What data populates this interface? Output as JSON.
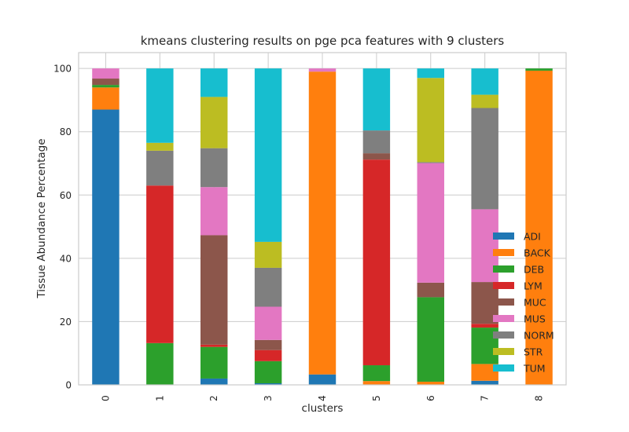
{
  "chart_data": {
    "type": "bar",
    "stacked": true,
    "title": "kmeans clustering results on pge pca features with 9 clusters",
    "xlabel": "clusters",
    "ylabel": "Tissue Abundance Percentage",
    "ylim": [
      0,
      105
    ],
    "yticks": [
      0,
      20,
      40,
      60,
      80,
      100
    ],
    "grid": true,
    "legend_position": "lower-right",
    "categories": [
      "0",
      "1",
      "2",
      "3",
      "4",
      "5",
      "6",
      "7",
      "8"
    ],
    "series": [
      {
        "name": "ADI",
        "color": "#1f77b4",
        "values": [
          87.0,
          0.0,
          2.0,
          0.5,
          3.3,
          0.0,
          0.0,
          1.3,
          0.0
        ]
      },
      {
        "name": "BACK",
        "color": "#ff7f0e",
        "values": [
          7.0,
          0.0,
          0.0,
          0.0,
          95.7,
          1.2,
          1.0,
          5.3,
          99.3
        ]
      },
      {
        "name": "DEB",
        "color": "#2ca02c",
        "values": [
          0.8,
          13.2,
          10.0,
          7.0,
          0.0,
          5.0,
          26.7,
          11.5,
          0.7
        ]
      },
      {
        "name": "LYM",
        "color": "#d62728",
        "values": [
          0.0,
          49.8,
          0.7,
          3.5,
          0.0,
          65.0,
          0.0,
          1.2,
          0.0
        ]
      },
      {
        "name": "MUC",
        "color": "#8c564b",
        "values": [
          2.0,
          0.0,
          34.6,
          3.2,
          0.0,
          2.0,
          4.6,
          13.2,
          0.0
        ]
      },
      {
        "name": "MUS",
        "color": "#e377c2",
        "values": [
          3.2,
          0.0,
          15.2,
          10.5,
          1.0,
          0.0,
          37.8,
          23.0,
          0.0
        ]
      },
      {
        "name": "NORM",
        "color": "#7f7f7f",
        "values": [
          0.0,
          11.0,
          12.3,
          12.3,
          0.0,
          7.2,
          0.3,
          32.0,
          0.0
        ]
      },
      {
        "name": "STR",
        "color": "#bcbd22",
        "values": [
          0.0,
          2.5,
          16.2,
          8.2,
          0.0,
          0.0,
          26.6,
          4.2,
          0.0
        ]
      },
      {
        "name": "TUM",
        "color": "#17becf",
        "values": [
          0.0,
          23.5,
          9.0,
          54.8,
          0.0,
          19.6,
          3.0,
          8.3,
          0.0
        ]
      }
    ]
  }
}
